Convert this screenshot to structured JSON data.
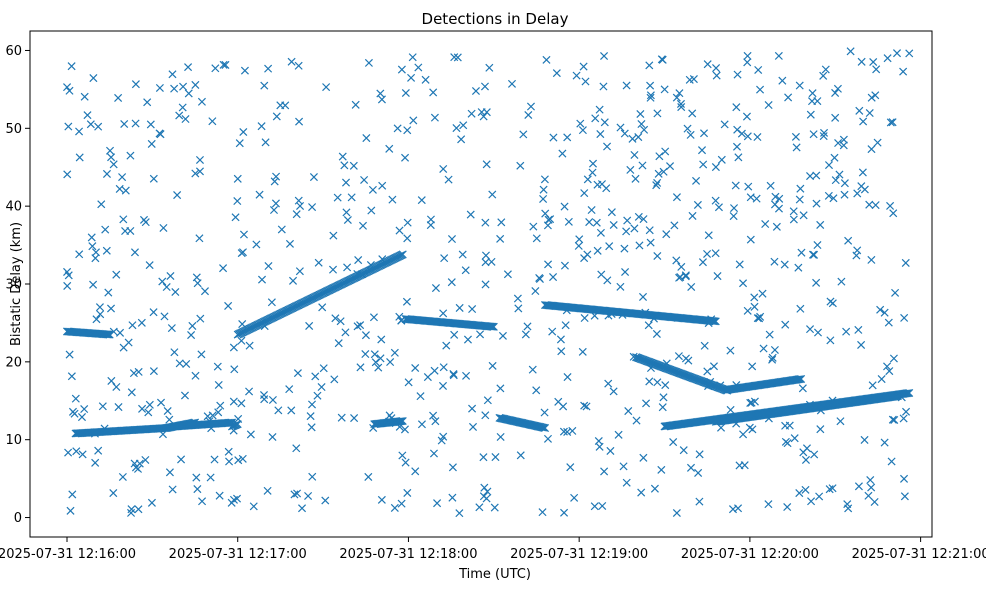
{
  "chart_data": {
    "type": "scatter",
    "title": "Detections in Delay",
    "xlabel": "Time (UTC)",
    "ylabel": "Bistatic Delay (km)",
    "x_ticks": [
      "2025-07-31 12:16:00",
      "2025-07-31 12:17:00",
      "2025-07-31 12:18:00",
      "2025-07-31 12:19:00",
      "2025-07-31 12:20:00",
      "2025-07-31 12:21:00"
    ],
    "y_ticks": [
      0,
      10,
      20,
      30,
      40,
      50,
      60
    ],
    "xlim": [
      "2025-07-31 12:15:47",
      "2025-07-31 12:21:04"
    ],
    "ylim": [
      -2.5,
      62.5
    ],
    "marker": "x",
    "color": "#1f77b4",
    "grid": false,
    "legend": "none",
    "series": [
      {
        "tracks": [
          {
            "start": "2025-07-31 12:16:00",
            "end": "2025-07-31 12:16:15",
            "y0": 23.9,
            "y1": 23.5
          },
          {
            "start": "2025-07-31 12:16:03",
            "end": "2025-07-31 12:16:35",
            "y0": 10.8,
            "y1": 11.5
          },
          {
            "start": "2025-07-31 12:16:35",
            "end": "2025-07-31 12:16:45",
            "y0": 11.5,
            "y1": 12.2
          },
          {
            "start": "2025-07-31 12:16:58",
            "end": "2025-07-31 12:16:60",
            "y0": 11.7,
            "y1": 12.0
          },
          {
            "start": "2025-07-31 12:17:00",
            "end": "2025-07-31 12:17:58",
            "y0": 23.5,
            "y1": 33.8
          },
          {
            "start": "2025-07-31 12:16:38",
            "end": "2025-07-31 12:16:58",
            "y0": 11.7,
            "y1": 12.2
          },
          {
            "start": "2025-07-31 12:17:48",
            "end": "2025-07-31 12:17:58",
            "y0": 12.0,
            "y1": 12.4
          },
          {
            "start": "2025-07-31 12:17:59",
            "end": "2025-07-31 12:18:30",
            "y0": 25.5,
            "y1": 24.5
          },
          {
            "start": "2025-07-31 12:18:32",
            "end": "2025-07-31 12:18:48",
            "y0": 12.8,
            "y1": 11.5
          },
          {
            "start": "2025-07-31 12:18:48",
            "end": "2025-07-31 12:19:48",
            "y0": 27.3,
            "y1": 25.2
          },
          {
            "start": "2025-07-31 12:19:20",
            "end": "2025-07-31 12:19:52",
            "y0": 20.6,
            "y1": 16.3
          },
          {
            "start": "2025-07-31 12:19:52",
            "end": "2025-07-31 12:20:18",
            "y0": 16.4,
            "y1": 17.8
          },
          {
            "start": "2025-07-31 12:19:30",
            "end": "2025-07-31 12:20:56",
            "y0": 11.7,
            "y1": 16.0
          },
          {
            "start": "2025-07-31 12:19:48",
            "end": "2025-07-31 12:20:52",
            "y0": 12.3,
            "y1": 15.6
          }
        ],
        "noise_seed": 7,
        "noise_count": 820
      }
    ]
  }
}
